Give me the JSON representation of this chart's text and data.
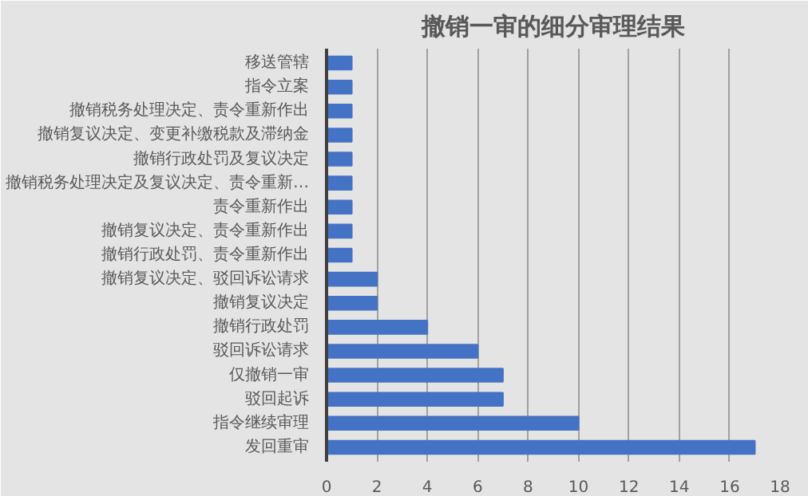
{
  "chart_data": {
    "type": "bar",
    "orientation": "horizontal",
    "title": "撤销一审的细分审理结果",
    "categories": [
      "移送管辖",
      "指令立案",
      "撤销税务处理决定、责令重新作出",
      "撤销复议决定、变更补缴税款及滞纳金",
      "撤销行政处罚及复议决定",
      "撤销税务处理决定及复议决定、责令重新…",
      "责令重新作出",
      "撤销复议决定、责令重新作出",
      "撤销行政处罚、责令重新作出",
      "撤销复议决定、驳回诉讼请求",
      "撤销复议决定",
      "撤销行政处罚",
      "驳回诉讼请求",
      "仅撤销一审",
      "驳回起诉",
      "指令继续审理",
      "发回重审"
    ],
    "values": [
      1,
      1,
      1,
      1,
      1,
      1,
      1,
      1,
      1,
      2,
      2,
      4,
      6,
      7,
      7,
      10,
      17
    ],
    "color": "#4472c4",
    "xlim": [
      0,
      18
    ],
    "xticks": [
      0,
      2,
      4,
      6,
      8,
      10,
      12,
      14,
      16,
      18
    ],
    "grid": "x"
  }
}
